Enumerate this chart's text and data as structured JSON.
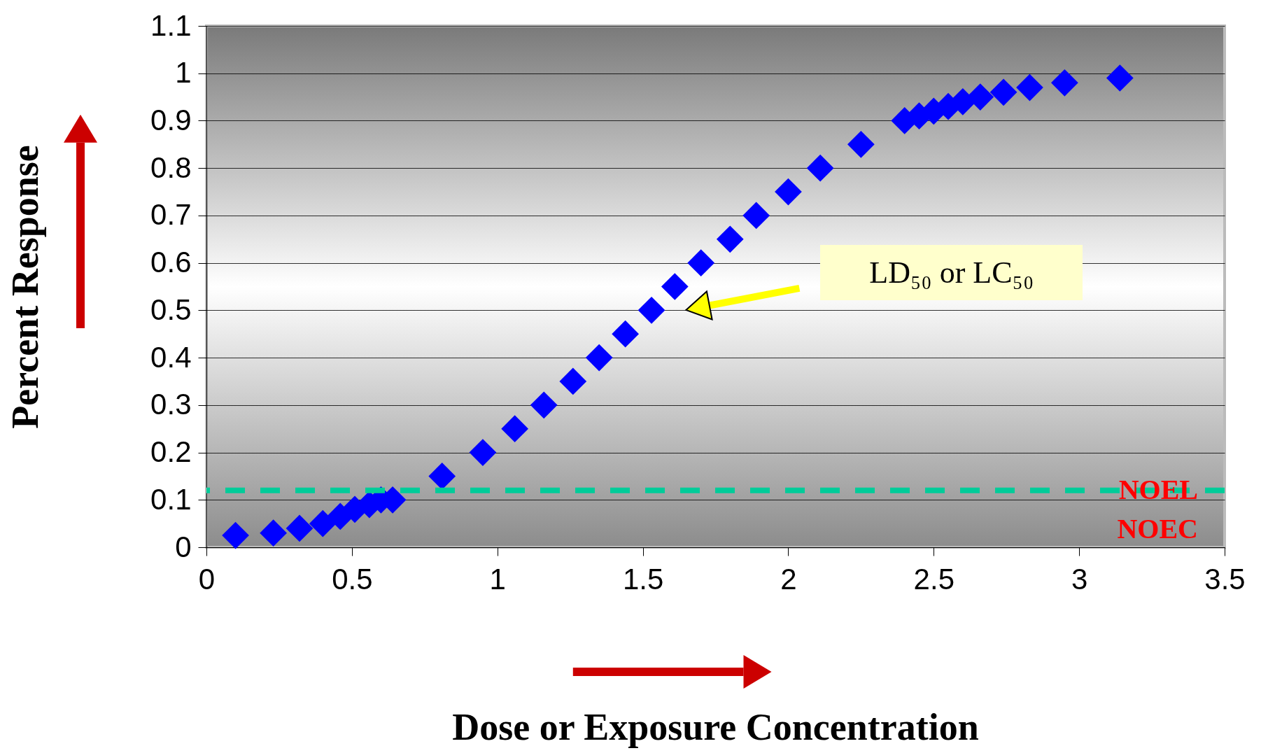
{
  "chart_data": {
    "type": "scatter",
    "xlabel": "Dose or Exposure Concentration",
    "ylabel": "Percent Response",
    "x": [
      0.1,
      0.23,
      0.32,
      0.4,
      0.46,
      0.51,
      0.56,
      0.6,
      0.64,
      0.81,
      0.95,
      1.06,
      1.16,
      1.26,
      1.35,
      1.44,
      1.53,
      1.61,
      1.7,
      1.8,
      1.89,
      2.0,
      2.11,
      2.25,
      2.4,
      2.45,
      2.5,
      2.55,
      2.6,
      2.66,
      2.74,
      2.83,
      2.95,
      3.14
    ],
    "series": [
      {
        "color": "#0000ff",
        "values": [
          0.025,
          0.03,
          0.04,
          0.05,
          0.065,
          0.08,
          0.09,
          0.1,
          0.1,
          0.15,
          0.2,
          0.25,
          0.3,
          0.35,
          0.4,
          0.45,
          0.5,
          0.55,
          0.6,
          0.65,
          0.7,
          0.75,
          0.8,
          0.85,
          0.9,
          0.91,
          0.92,
          0.93,
          0.94,
          0.95,
          0.96,
          0.97,
          0.98,
          0.99
        ]
      }
    ],
    "xlim": [
      0,
      3.5
    ],
    "xticks": [
      0,
      0.5,
      1,
      1.5,
      2,
      2.5,
      3,
      3.5
    ],
    "ylim": [
      0,
      1.1
    ],
    "yticks": [
      0,
      0.1,
      0.2,
      0.3,
      0.4,
      0.5,
      0.6,
      0.7,
      0.8,
      0.9,
      1,
      1.1
    ],
    "grid": "y",
    "marker": "diamond",
    "ref_lines": [
      {
        "axis": "y",
        "value": 0.12,
        "label": "NOEL\nNOEC",
        "color": "#00cc99",
        "line_style": "dashed"
      }
    ],
    "annotations": [
      "LD₅₀ or LC₅₀"
    ]
  }
}
